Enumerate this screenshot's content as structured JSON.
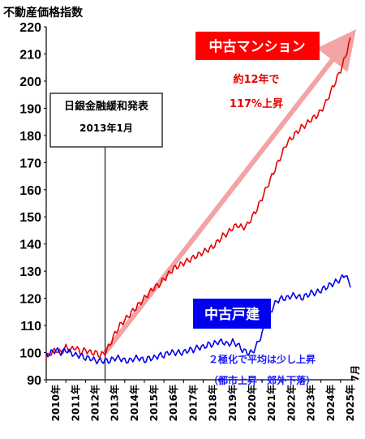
{
  "chart_data": {
    "type": "line",
    "ylabel": "不動産価格指数",
    "ylim": [
      90,
      220
    ],
    "yticks": [
      90,
      100,
      110,
      120,
      130,
      140,
      150,
      160,
      170,
      180,
      190,
      200,
      210,
      220
    ],
    "xlim": [
      2010,
      2025.75
    ],
    "x_tick_labels": [
      "2010年",
      "2011年",
      "2012年",
      "2013年",
      "2014年",
      "2015年",
      "2016年",
      "2017年",
      "2018年",
      "2019年",
      "2020年",
      "2021年",
      "2022年",
      "2023年",
      "2024年",
      "2025年"
    ],
    "x_end_label": "7月",
    "grid": false,
    "colors": {
      "mansion": "#e60000",
      "house": "#0000ee",
      "arrow": "#f29a9a",
      "event_line": "#444444"
    },
    "series": [
      {
        "name": "中古マンション",
        "color": "#e60000",
        "x": [
          2010.0,
          2010.25,
          2010.5,
          2010.75,
          2011.0,
          2011.25,
          2011.5,
          2011.75,
          2012.0,
          2012.25,
          2012.5,
          2012.75,
          2013.0,
          2013.25,
          2013.5,
          2013.75,
          2014.0,
          2014.25,
          2014.5,
          2014.75,
          2015.0,
          2015.25,
          2015.5,
          2015.75,
          2016.0,
          2016.25,
          2016.5,
          2016.75,
          2017.0,
          2017.25,
          2017.5,
          2017.75,
          2018.0,
          2018.25,
          2018.5,
          2018.75,
          2019.0,
          2019.25,
          2019.5,
          2019.75,
          2020.0,
          2020.25,
          2020.5,
          2020.75,
          2021.0,
          2021.25,
          2021.5,
          2021.75,
          2022.0,
          2022.25,
          2022.5,
          2022.75,
          2023.0,
          2023.25,
          2023.5,
          2023.75,
          2024.0,
          2024.25,
          2024.5,
          2024.75,
          2025.0,
          2025.25,
          2025.5
        ],
        "values": [
          98,
          100,
          101,
          100,
          102,
          101,
          102,
          100,
          101,
          100,
          100,
          99,
          100,
          103,
          107,
          110,
          112,
          114,
          116,
          118,
          120,
          122,
          124,
          125,
          127,
          129,
          131,
          132,
          133,
          134,
          135,
          136,
          137,
          138,
          139,
          141,
          143,
          144,
          146,
          147,
          146,
          147,
          150,
          153,
          157,
          161,
          165,
          169,
          173,
          177,
          179,
          181,
          183,
          184,
          186,
          187,
          189,
          192,
          196,
          200,
          204,
          209,
          216
        ]
      },
      {
        "name": "中古戸建",
        "color": "#0000ee",
        "x": [
          2010.0,
          2010.25,
          2010.5,
          2010.75,
          2011.0,
          2011.25,
          2011.5,
          2011.75,
          2012.0,
          2012.25,
          2012.5,
          2012.75,
          2013.0,
          2013.25,
          2013.5,
          2013.75,
          2014.0,
          2014.25,
          2014.5,
          2014.75,
          2015.0,
          2015.25,
          2015.5,
          2015.75,
          2016.0,
          2016.25,
          2016.5,
          2016.75,
          2017.0,
          2017.25,
          2017.5,
          2017.75,
          2018.0,
          2018.25,
          2018.5,
          2018.75,
          2019.0,
          2019.25,
          2019.5,
          2019.75,
          2020.0,
          2020.25,
          2020.5,
          2020.75,
          2021.0,
          2021.25,
          2021.5,
          2021.75,
          2022.0,
          2022.25,
          2022.5,
          2022.75,
          2023.0,
          2023.25,
          2023.5,
          2023.75,
          2024.0,
          2024.25,
          2024.5,
          2024.75,
          2025.0,
          2025.25,
          2025.5
        ],
        "values": [
          99,
          100,
          101,
          100,
          101,
          100,
          99,
          99,
          98,
          98,
          97,
          97,
          97,
          97,
          98,
          98,
          97,
          97,
          98,
          98,
          97,
          98,
          98,
          99,
          99,
          100,
          100,
          100,
          100,
          101,
          101,
          102,
          102,
          103,
          103,
          104,
          104,
          103,
          104,
          103,
          101,
          100,
          100,
          103,
          107,
          112,
          116,
          119,
          120,
          120,
          121,
          121,
          120,
          121,
          122,
          122,
          123,
          124,
          125,
          126,
          127,
          129,
          124
        ]
      }
    ],
    "annotations": {
      "event_title": "日銀金融緩和発表",
      "event_date": "2013年1月",
      "event_x": 2013.0,
      "mansion_badge": "中古マンション",
      "mansion_note_1": "約12年で",
      "mansion_note_2": "117%上昇",
      "house_badge": "中古戸建",
      "house_note_1": "２極化で平均は少し上昇",
      "house_note_2": "（都市上昇・郊外下落）"
    }
  }
}
